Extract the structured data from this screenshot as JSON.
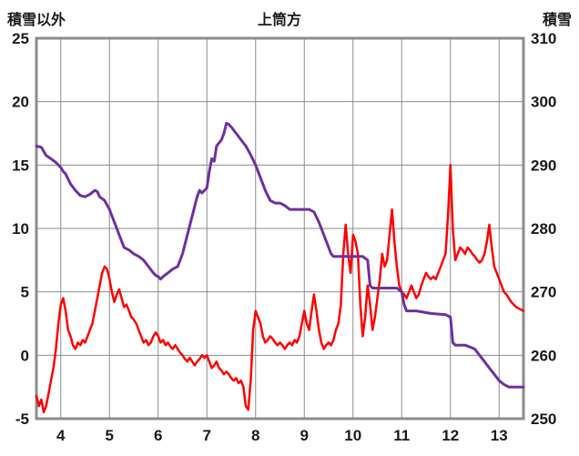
{
  "chart_data": {
    "type": "line",
    "title": "上筒方",
    "left_axis": {
      "label": "積雪以外",
      "min": -5,
      "max": 25,
      "ticks": [
        -5,
        0,
        5,
        10,
        15,
        20,
        25
      ]
    },
    "right_axis": {
      "label": "積雪",
      "min": 250,
      "max": 310,
      "ticks": [
        250,
        260,
        270,
        280,
        290,
        300,
        310
      ]
    },
    "x_axis": {
      "min": 3.5,
      "max": 13.5,
      "ticks": [
        4,
        5,
        6,
        7,
        8,
        9,
        10,
        11,
        12,
        13
      ]
    },
    "grid": true,
    "legend": "none",
    "colors": {
      "grid": "#8c8c8c",
      "frame": "#8c8c8c",
      "text": "#1a1a1a",
      "background": "#ffffff"
    },
    "series": [
      {
        "name": "積雪以外",
        "axis": "left",
        "color": "#ff0000",
        "width": 2.5,
        "points": [
          [
            3.5,
            -3.2
          ],
          [
            3.55,
            -4.0
          ],
          [
            3.6,
            -3.5
          ],
          [
            3.65,
            -4.5
          ],
          [
            3.7,
            -4.0
          ],
          [
            3.75,
            -3.0
          ],
          [
            3.8,
            -2.0
          ],
          [
            3.85,
            -1.0
          ],
          [
            3.9,
            0.5
          ],
          [
            3.95,
            2.5
          ],
          [
            4.0,
            4.0
          ],
          [
            4.05,
            4.5
          ],
          [
            4.1,
            3.5
          ],
          [
            4.15,
            2.0
          ],
          [
            4.2,
            1.5
          ],
          [
            4.25,
            0.8
          ],
          [
            4.3,
            0.5
          ],
          [
            4.35,
            1.0
          ],
          [
            4.4,
            0.8
          ],
          [
            4.45,
            1.2
          ],
          [
            4.5,
            1.0
          ],
          [
            4.55,
            1.5
          ],
          [
            4.6,
            2.0
          ],
          [
            4.65,
            2.5
          ],
          [
            4.7,
            3.5
          ],
          [
            4.75,
            4.5
          ],
          [
            4.8,
            5.5
          ],
          [
            4.85,
            6.5
          ],
          [
            4.9,
            7.0
          ],
          [
            4.95,
            6.8
          ],
          [
            5.0,
            6.0
          ],
          [
            5.05,
            5.0
          ],
          [
            5.1,
            4.2
          ],
          [
            5.15,
            4.8
          ],
          [
            5.2,
            5.2
          ],
          [
            5.25,
            4.5
          ],
          [
            5.3,
            3.8
          ],
          [
            5.35,
            4.0
          ],
          [
            5.4,
            3.5
          ],
          [
            5.45,
            3.0
          ],
          [
            5.5,
            2.8
          ],
          [
            5.55,
            2.5
          ],
          [
            5.6,
            2.0
          ],
          [
            5.65,
            1.5
          ],
          [
            5.7,
            1.0
          ],
          [
            5.75,
            1.2
          ],
          [
            5.8,
            0.8
          ],
          [
            5.85,
            1.0
          ],
          [
            5.9,
            1.5
          ],
          [
            5.95,
            1.8
          ],
          [
            6.0,
            1.5
          ],
          [
            6.05,
            1.0
          ],
          [
            6.1,
            1.2
          ],
          [
            6.15,
            0.8
          ],
          [
            6.2,
            1.0
          ],
          [
            6.25,
            0.7
          ],
          [
            6.3,
            0.5
          ],
          [
            6.35,
            0.8
          ],
          [
            6.4,
            0.5
          ],
          [
            6.45,
            0.2
          ],
          [
            6.5,
            0.0
          ],
          [
            6.55,
            -0.3
          ],
          [
            6.6,
            -0.5
          ],
          [
            6.65,
            -0.2
          ],
          [
            6.7,
            -0.5
          ],
          [
            6.75,
            -0.8
          ],
          [
            6.8,
            -0.5
          ],
          [
            6.85,
            -0.3
          ],
          [
            6.9,
            0.0
          ],
          [
            6.95,
            -0.2
          ],
          [
            7.0,
            0.0
          ],
          [
            7.05,
            -0.5
          ],
          [
            7.1,
            -1.0
          ],
          [
            7.15,
            -0.8
          ],
          [
            7.2,
            -0.5
          ],
          [
            7.25,
            -1.0
          ],
          [
            7.3,
            -1.2
          ],
          [
            7.35,
            -1.5
          ],
          [
            7.4,
            -1.3
          ],
          [
            7.45,
            -1.5
          ],
          [
            7.5,
            -1.8
          ],
          [
            7.55,
            -2.0
          ],
          [
            7.6,
            -1.8
          ],
          [
            7.65,
            -2.2
          ],
          [
            7.7,
            -2.0
          ],
          [
            7.75,
            -2.5
          ],
          [
            7.8,
            -4.0
          ],
          [
            7.85,
            -4.3
          ],
          [
            7.9,
            -2.0
          ],
          [
            7.95,
            2.0
          ],
          [
            8.0,
            3.5
          ],
          [
            8.05,
            3.0
          ],
          [
            8.1,
            2.5
          ],
          [
            8.15,
            1.5
          ],
          [
            8.2,
            1.0
          ],
          [
            8.25,
            1.2
          ],
          [
            8.3,
            1.5
          ],
          [
            8.35,
            1.3
          ],
          [
            8.4,
            1.0
          ],
          [
            8.45,
            0.8
          ],
          [
            8.5,
            1.0
          ],
          [
            8.55,
            0.8
          ],
          [
            8.6,
            0.5
          ],
          [
            8.65,
            0.8
          ],
          [
            8.7,
            1.0
          ],
          [
            8.75,
            0.8
          ],
          [
            8.8,
            1.2
          ],
          [
            8.85,
            1.0
          ],
          [
            8.9,
            1.5
          ],
          [
            8.95,
            2.5
          ],
          [
            9.0,
            3.5
          ],
          [
            9.05,
            2.5
          ],
          [
            9.1,
            2.0
          ],
          [
            9.15,
            3.5
          ],
          [
            9.2,
            4.8
          ],
          [
            9.25,
            3.5
          ],
          [
            9.3,
            2.0
          ],
          [
            9.35,
            1.0
          ],
          [
            9.4,
            0.5
          ],
          [
            9.45,
            0.8
          ],
          [
            9.5,
            1.0
          ],
          [
            9.55,
            0.8
          ],
          [
            9.6,
            1.2
          ],
          [
            9.65,
            2.0
          ],
          [
            9.7,
            2.5
          ],
          [
            9.75,
            4.0
          ],
          [
            9.8,
            8.0
          ],
          [
            9.85,
            10.3
          ],
          [
            9.9,
            8.0
          ],
          [
            9.95,
            6.5
          ],
          [
            10.0,
            9.5
          ],
          [
            10.05,
            9.0
          ],
          [
            10.1,
            8.0
          ],
          [
            10.15,
            4.0
          ],
          [
            10.2,
            1.5
          ],
          [
            10.25,
            3.0
          ],
          [
            10.3,
            5.5
          ],
          [
            10.35,
            4.0
          ],
          [
            10.4,
            2.0
          ],
          [
            10.45,
            3.0
          ],
          [
            10.5,
            4.5
          ],
          [
            10.55,
            6.0
          ],
          [
            10.6,
            8.0
          ],
          [
            10.65,
            7.0
          ],
          [
            10.7,
            7.5
          ],
          [
            10.75,
            9.5
          ],
          [
            10.8,
            11.5
          ],
          [
            10.85,
            9.0
          ],
          [
            10.9,
            7.0
          ],
          [
            10.95,
            5.5
          ],
          [
            11.0,
            5.0
          ],
          [
            11.05,
            4.8
          ],
          [
            11.1,
            4.5
          ],
          [
            11.15,
            5.0
          ],
          [
            11.2,
            5.5
          ],
          [
            11.25,
            5.0
          ],
          [
            11.3,
            4.5
          ],
          [
            11.35,
            4.8
          ],
          [
            11.4,
            5.5
          ],
          [
            11.45,
            6.0
          ],
          [
            11.5,
            6.5
          ],
          [
            11.55,
            6.2
          ],
          [
            11.6,
            6.0
          ],
          [
            11.65,
            6.2
          ],
          [
            11.7,
            6.0
          ],
          [
            11.75,
            6.5
          ],
          [
            11.8,
            7.0
          ],
          [
            11.85,
            7.5
          ],
          [
            11.9,
            8.0
          ],
          [
            11.95,
            11.0
          ],
          [
            12.0,
            15.0
          ],
          [
            12.05,
            10.0
          ],
          [
            12.1,
            7.5
          ],
          [
            12.15,
            8.0
          ],
          [
            12.2,
            8.5
          ],
          [
            12.25,
            8.3
          ],
          [
            12.3,
            8.0
          ],
          [
            12.35,
            8.5
          ],
          [
            12.4,
            8.3
          ],
          [
            12.45,
            8.0
          ],
          [
            12.5,
            7.8
          ],
          [
            12.55,
            7.5
          ],
          [
            12.6,
            7.3
          ],
          [
            12.65,
            7.5
          ],
          [
            12.7,
            8.0
          ],
          [
            12.75,
            9.0
          ],
          [
            12.8,
            10.3
          ],
          [
            12.85,
            8.5
          ],
          [
            12.9,
            7.0
          ],
          [
            12.95,
            6.5
          ],
          [
            13.0,
            6.0
          ],
          [
            13.05,
            5.5
          ],
          [
            13.1,
            5.0
          ],
          [
            13.15,
            4.8
          ],
          [
            13.2,
            4.5
          ],
          [
            13.25,
            4.2
          ],
          [
            13.3,
            4.0
          ],
          [
            13.35,
            3.8
          ],
          [
            13.4,
            3.7
          ],
          [
            13.45,
            3.6
          ],
          [
            13.5,
            3.5
          ]
        ]
      },
      {
        "name": "積雪",
        "axis": "right",
        "color": "#7030a0",
        "width": 3,
        "points": [
          [
            3.5,
            293
          ],
          [
            3.6,
            292.8
          ],
          [
            3.7,
            291.5
          ],
          [
            3.8,
            291
          ],
          [
            3.9,
            290.4
          ],
          [
            4.0,
            289.6
          ],
          [
            4.05,
            289
          ],
          [
            4.1,
            288.6
          ],
          [
            4.2,
            287
          ],
          [
            4.3,
            286
          ],
          [
            4.4,
            285.2
          ],
          [
            4.5,
            285
          ],
          [
            4.6,
            285.4
          ],
          [
            4.7,
            286
          ],
          [
            4.75,
            285.8
          ],
          [
            4.8,
            285
          ],
          [
            4.9,
            284.4
          ],
          [
            5.0,
            283
          ],
          [
            5.05,
            282
          ],
          [
            5.1,
            281
          ],
          [
            5.2,
            279
          ],
          [
            5.3,
            277
          ],
          [
            5.4,
            276.6
          ],
          [
            5.5,
            276
          ],
          [
            5.6,
            275.6
          ],
          [
            5.7,
            275
          ],
          [
            5.8,
            274
          ],
          [
            5.9,
            273
          ],
          [
            5.95,
            272.6
          ],
          [
            6.0,
            272.4
          ],
          [
            6.05,
            272
          ],
          [
            6.1,
            272.4
          ],
          [
            6.2,
            273
          ],
          [
            6.3,
            273.6
          ],
          [
            6.4,
            274
          ],
          [
            6.5,
            276
          ],
          [
            6.6,
            279
          ],
          [
            6.7,
            282
          ],
          [
            6.8,
            285
          ],
          [
            6.85,
            286
          ],
          [
            6.9,
            285.6
          ],
          [
            7.0,
            286.4
          ],
          [
            7.05,
            289
          ],
          [
            7.1,
            291
          ],
          [
            7.15,
            290.6
          ],
          [
            7.2,
            293
          ],
          [
            7.3,
            294
          ],
          [
            7.35,
            295
          ],
          [
            7.4,
            296.6
          ],
          [
            7.45,
            296.4
          ],
          [
            7.5,
            296
          ],
          [
            7.6,
            295
          ],
          [
            7.7,
            294
          ],
          [
            7.8,
            293
          ],
          [
            7.9,
            291.6
          ],
          [
            8.0,
            290
          ],
          [
            8.1,
            288
          ],
          [
            8.2,
            286
          ],
          [
            8.3,
            284.4
          ],
          [
            8.4,
            284
          ],
          [
            8.5,
            284
          ],
          [
            8.6,
            283.6
          ],
          [
            8.7,
            283
          ],
          [
            8.9,
            283
          ],
          [
            9.1,
            283
          ],
          [
            9.2,
            282.6
          ],
          [
            9.3,
            281
          ],
          [
            9.4,
            279
          ],
          [
            9.5,
            277
          ],
          [
            9.55,
            276
          ],
          [
            9.6,
            275.6
          ],
          [
            9.8,
            275.6
          ],
          [
            10.0,
            275.6
          ],
          [
            10.2,
            275.6
          ],
          [
            10.3,
            275
          ],
          [
            10.35,
            271
          ],
          [
            10.4,
            270.6
          ],
          [
            10.6,
            270.6
          ],
          [
            10.9,
            270.6
          ],
          [
            11.0,
            270
          ],
          [
            11.05,
            268
          ],
          [
            11.1,
            267
          ],
          [
            11.3,
            267
          ],
          [
            11.6,
            266.6
          ],
          [
            11.9,
            266.4
          ],
          [
            12.0,
            266
          ],
          [
            12.05,
            262
          ],
          [
            12.1,
            261.6
          ],
          [
            12.3,
            261.6
          ],
          [
            12.5,
            261
          ],
          [
            12.6,
            260
          ],
          [
            12.7,
            259
          ],
          [
            12.8,
            258
          ],
          [
            12.9,
            257
          ],
          [
            13.0,
            256
          ],
          [
            13.1,
            255.4
          ],
          [
            13.2,
            255
          ],
          [
            13.5,
            255
          ]
        ]
      }
    ]
  }
}
